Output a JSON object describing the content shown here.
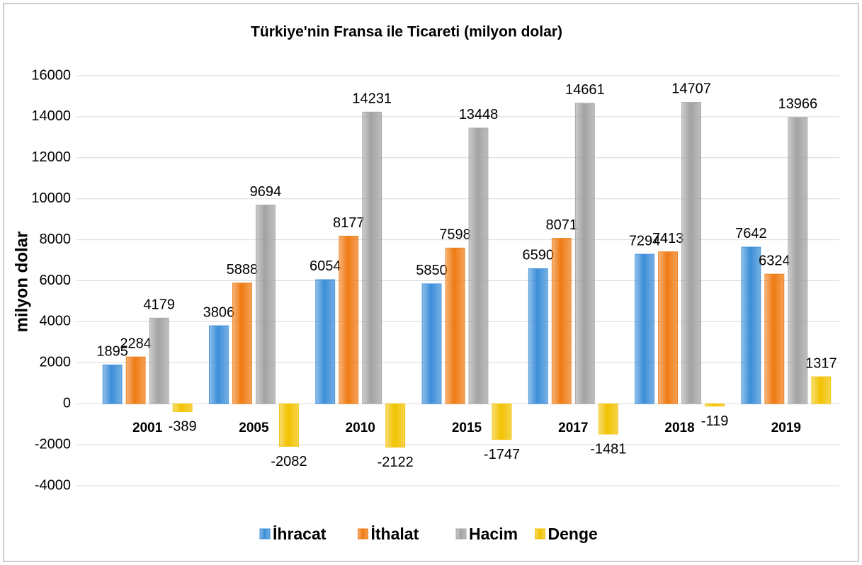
{
  "chart_data": {
    "type": "bar",
    "title": "Türkiye'nin Fransa ile Ticareti (milyon dolar)",
    "ylabel": "milyon dolar",
    "categories": [
      "2001",
      "2005",
      "2010",
      "2015",
      "2017",
      "2018",
      "2019"
    ],
    "series": [
      {
        "name": "İhracat",
        "color": "#3b8ed8",
        "values": [
          1895,
          3806,
          6054,
          5850,
          6590,
          7294,
          7642
        ]
      },
      {
        "name": "İthalat",
        "color": "#ef7a12",
        "values": [
          2284,
          5888,
          8177,
          7598,
          8071,
          7413,
          6324
        ]
      },
      {
        "name": "Hacim",
        "color": "#a3a3a3",
        "values": [
          4179,
          9694,
          14231,
          13448,
          14661,
          14707,
          13966
        ]
      },
      {
        "name": "Denge",
        "color": "#f2c200",
        "values": [
          -389,
          -2082,
          -2122,
          -1747,
          -1481,
          -119,
          1317
        ]
      }
    ],
    "ylim": [
      -4000,
      16000
    ],
    "yticks": [
      -4000,
      -2000,
      0,
      2000,
      4000,
      6000,
      8000,
      10000,
      12000,
      14000,
      16000
    ],
    "grid": true,
    "legend": "bottom"
  }
}
